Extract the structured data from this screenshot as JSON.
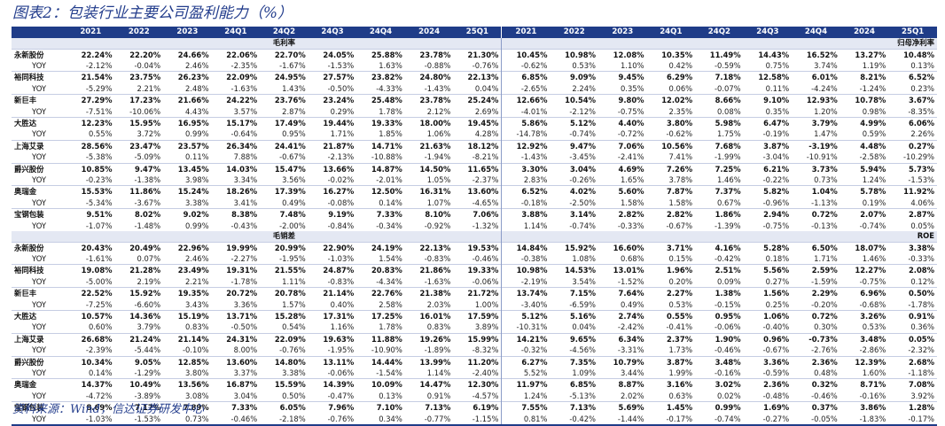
{
  "title": "图表2：包装行业主要公司盈利能力（%）",
  "source": "资料来源：Wind，信达证券研发中心",
  "periods": [
    "2021",
    "2022",
    "2023",
    "24Q1",
    "24Q2",
    "24Q3",
    "24Q4",
    "2024",
    "25Q1"
  ],
  "sections": [
    {
      "left_label": "毛利率",
      "right_label": "归母净利率",
      "companies": [
        {
          "name": "永新股份",
          "main": [
            "22.24%",
            "22.20%",
            "24.66%",
            "22.06%",
            "22.70%",
            "24.05%",
            "25.88%",
            "23.78%",
            "21.30%",
            "10.45%",
            "10.98%",
            "12.08%",
            "10.35%",
            "11.49%",
            "14.43%",
            "16.52%",
            "13.27%",
            "10.48%"
          ],
          "yoy": [
            "-2.12%",
            "-0.04%",
            "2.46%",
            "-2.35%",
            "-1.67%",
            "-1.53%",
            "1.63%",
            "-0.88%",
            "-0.76%",
            "-0.62%",
            "0.53%",
            "1.10%",
            "0.42%",
            "-0.59%",
            "0.75%",
            "3.74%",
            "1.19%",
            "0.13%"
          ]
        },
        {
          "name": "裕同科技",
          "main": [
            "21.54%",
            "23.75%",
            "26.23%",
            "22.09%",
            "24.95%",
            "27.57%",
            "23.82%",
            "24.80%",
            "22.13%",
            "6.85%",
            "9.09%",
            "9.45%",
            "6.29%",
            "7.18%",
            "12.58%",
            "6.01%",
            "8.21%",
            "6.52%"
          ],
          "yoy": [
            "-5.29%",
            "2.21%",
            "2.48%",
            "-1.63%",
            "1.43%",
            "-0.50%",
            "-4.33%",
            "-1.43%",
            "0.04%",
            "-2.65%",
            "2.24%",
            "0.35%",
            "0.06%",
            "-0.07%",
            "0.11%",
            "-4.24%",
            "-1.24%",
            "0.23%"
          ]
        },
        {
          "name": "新巨丰",
          "main": [
            "27.29%",
            "17.23%",
            "21.66%",
            "24.22%",
            "23.76%",
            "23.24%",
            "25.48%",
            "23.78%",
            "25.24%",
            "12.66%",
            "10.54%",
            "9.80%",
            "12.02%",
            "8.66%",
            "9.10%",
            "12.93%",
            "10.78%",
            "3.67%"
          ],
          "yoy": [
            "-7.51%",
            "-10.06%",
            "4.43%",
            "3.57%",
            "2.87%",
            "0.29%",
            "1.78%",
            "2.12%",
            "2.69%",
            "-4.01%",
            "-2.12%",
            "-0.75%",
            "2.35%",
            "0.08%",
            "0.35%",
            "1.20%",
            "0.98%",
            "-8.35%"
          ]
        },
        {
          "name": "大胜达",
          "main": [
            "12.23%",
            "15.95%",
            "16.95%",
            "15.17%",
            "17.49%",
            "19.44%",
            "19.33%",
            "18.00%",
            "19.45%",
            "5.86%",
            "5.12%",
            "4.40%",
            "3.80%",
            "5.98%",
            "6.47%",
            "3.79%",
            "4.99%",
            "6.06%"
          ],
          "yoy": [
            "0.55%",
            "3.72%",
            "0.99%",
            "-0.64%",
            "0.95%",
            "1.71%",
            "1.85%",
            "1.06%",
            "4.28%",
            "-14.78%",
            "-0.74%",
            "-0.72%",
            "-0.62%",
            "1.75%",
            "-0.19%",
            "1.47%",
            "0.59%",
            "2.26%"
          ]
        },
        {
          "name": "上海艾录",
          "main": [
            "28.56%",
            "23.47%",
            "23.57%",
            "26.34%",
            "24.41%",
            "21.87%",
            "14.71%",
            "21.63%",
            "18.12%",
            "12.92%",
            "9.47%",
            "7.06%",
            "10.56%",
            "7.68%",
            "3.87%",
            "-3.19%",
            "4.48%",
            "0.27%"
          ],
          "yoy": [
            "-5.38%",
            "-5.09%",
            "0.11%",
            "7.88%",
            "-0.67%",
            "-2.13%",
            "-10.88%",
            "-1.94%",
            "-8.21%",
            "-1.43%",
            "-3.45%",
            "-2.41%",
            "7.41%",
            "-1.99%",
            "-3.04%",
            "-10.91%",
            "-2.58%",
            "-10.29%"
          ]
        },
        {
          "name": "爵兴股份",
          "main": [
            "10.85%",
            "9.47%",
            "13.45%",
            "14.03%",
            "15.47%",
            "13.66%",
            "14.87%",
            "14.50%",
            "11.65%",
            "3.30%",
            "3.04%",
            "4.69%",
            "7.26%",
            "7.25%",
            "6.21%",
            "3.73%",
            "5.94%",
            "5.73%"
          ],
          "yoy": [
            "-0.23%",
            "-1.38%",
            "3.98%",
            "3.34%",
            "3.56%",
            "-0.02%",
            "-2.01%",
            "1.05%",
            "-2.37%",
            "2.83%",
            "-0.26%",
            "1.65%",
            "3.78%",
            "1.46%",
            "-0.22%",
            "0.73%",
            "1.24%",
            "-1.53%"
          ]
        },
        {
          "name": "奥瑞金",
          "main": [
            "15.53%",
            "11.86%",
            "15.24%",
            "18.26%",
            "17.39%",
            "16.27%",
            "12.50%",
            "16.31%",
            "13.60%",
            "6.52%",
            "4.02%",
            "5.60%",
            "7.87%",
            "7.37%",
            "5.82%",
            "1.04%",
            "5.78%",
            "11.92%"
          ],
          "yoy": [
            "-5.34%",
            "-3.67%",
            "3.38%",
            "3.41%",
            "0.49%",
            "-0.08%",
            "0.14%",
            "1.07%",
            "-4.65%",
            "-0.18%",
            "-2.50%",
            "1.58%",
            "1.58%",
            "0.67%",
            "-0.96%",
            "-1.13%",
            "0.19%",
            "4.06%"
          ]
        },
        {
          "name": "宝钢包装",
          "main": [
            "9.51%",
            "8.02%",
            "9.02%",
            "8.38%",
            "7.48%",
            "9.19%",
            "7.33%",
            "8.10%",
            "7.06%",
            "3.88%",
            "3.14%",
            "2.82%",
            "2.82%",
            "1.86%",
            "2.94%",
            "0.72%",
            "2.07%",
            "2.87%"
          ],
          "yoy": [
            "-1.07%",
            "-1.48%",
            "0.99%",
            "-0.43%",
            "-2.00%",
            "-0.84%",
            "-0.34%",
            "-0.92%",
            "-1.32%",
            "1.14%",
            "-0.74%",
            "-0.33%",
            "-0.67%",
            "-1.39%",
            "-0.75%",
            "-0.13%",
            "-0.74%",
            "0.05%"
          ]
        }
      ]
    },
    {
      "left_label": "毛销差",
      "right_label": "ROE",
      "companies": [
        {
          "name": "永新股份",
          "main": [
            "20.43%",
            "20.49%",
            "22.96%",
            "19.99%",
            "20.99%",
            "22.90%",
            "24.19%",
            "22.13%",
            "19.53%",
            "14.84%",
            "15.92%",
            "16.60%",
            "3.71%",
            "4.16%",
            "5.28%",
            "6.50%",
            "18.07%",
            "3.38%"
          ],
          "yoy": [
            "-1.61%",
            "0.07%",
            "2.46%",
            "-2.27%",
            "-1.95%",
            "-1.03%",
            "1.54%",
            "-0.83%",
            "-0.46%",
            "-0.38%",
            "1.08%",
            "0.68%",
            "0.15%",
            "-0.42%",
            "0.18%",
            "1.71%",
            "1.46%",
            "-0.33%"
          ]
        },
        {
          "name": "裕同科技",
          "main": [
            "19.08%",
            "21.28%",
            "23.49%",
            "19.31%",
            "21.55%",
            "24.87%",
            "20.83%",
            "21.86%",
            "19.33%",
            "10.98%",
            "14.53%",
            "13.01%",
            "1.96%",
            "2.51%",
            "5.56%",
            "2.59%",
            "12.27%",
            "2.08%"
          ],
          "yoy": [
            "-5.00%",
            "2.19%",
            "2.21%",
            "-1.78%",
            "1.11%",
            "-0.83%",
            "-4.34%",
            "-1.63%",
            "-0.06%",
            "-2.19%",
            "3.54%",
            "-1.52%",
            "0.20%",
            "0.09%",
            "0.27%",
            "-1.59%",
            "-0.75%",
            "0.12%"
          ]
        },
        {
          "name": "新巨丰",
          "main": [
            "22.52%",
            "15.92%",
            "19.35%",
            "20.72%",
            "20.78%",
            "21.14%",
            "22.76%",
            "21.38%",
            "21.72%",
            "13.74%",
            "7.15%",
            "7.64%",
            "2.27%",
            "1.38%",
            "1.56%",
            "2.29%",
            "6.96%",
            "0.50%"
          ],
          "yoy": [
            "-7.25%",
            "-6.60%",
            "3.43%",
            "3.36%",
            "1.57%",
            "0.40%",
            "2.58%",
            "2.03%",
            "1.00%",
            "-3.40%",
            "-6.59%",
            "0.49%",
            "0.53%",
            "-0.15%",
            "0.25%",
            "-0.20%",
            "-0.68%",
            "-1.78%"
          ]
        },
        {
          "name": "大胜达",
          "main": [
            "10.57%",
            "14.36%",
            "15.19%",
            "13.71%",
            "15.28%",
            "17.31%",
            "17.25%",
            "16.01%",
            "17.59%",
            "5.12%",
            "5.16%",
            "2.74%",
            "0.55%",
            "0.95%",
            "1.06%",
            "0.72%",
            "3.26%",
            "0.91%"
          ],
          "yoy": [
            "0.60%",
            "3.79%",
            "0.83%",
            "-0.50%",
            "0.54%",
            "1.16%",
            "1.78%",
            "0.83%",
            "3.89%",
            "-10.31%",
            "0.04%",
            "-2.42%",
            "-0.41%",
            "-0.06%",
            "-0.40%",
            "0.30%",
            "0.53%",
            "0.36%"
          ]
        },
        {
          "name": "上海艾录",
          "main": [
            "26.68%",
            "21.24%",
            "21.14%",
            "24.31%",
            "22.09%",
            "19.63%",
            "11.88%",
            "19.26%",
            "15.99%",
            "14.21%",
            "9.65%",
            "6.34%",
            "2.37%",
            "1.90%",
            "0.96%",
            "-0.73%",
            "3.48%",
            "0.05%"
          ],
          "yoy": [
            "-2.39%",
            "-5.44%",
            "-0.10%",
            "8.00%",
            "-0.76%",
            "-1.95%",
            "-10.90%",
            "-1.89%",
            "-8.32%",
            "-0.32%",
            "-4.56%",
            "-3.31%",
            "1.73%",
            "-0.46%",
            "-0.67%",
            "-2.76%",
            "-2.86%",
            "-2.32%"
          ]
        },
        {
          "name": "爵兴股份",
          "main": [
            "10.34%",
            "9.05%",
            "12.85%",
            "13.60%",
            "14.80%",
            "13.11%",
            "14.44%",
            "13.99%",
            "11.20%",
            "6.27%",
            "7.35%",
            "10.79%",
            "3.87%",
            "3.48%",
            "3.36%",
            "2.36%",
            "12.39%",
            "2.68%"
          ],
          "yoy": [
            "0.14%",
            "-1.29%",
            "3.80%",
            "3.37%",
            "3.38%",
            "-0.06%",
            "-1.54%",
            "1.14%",
            "-2.40%",
            "5.52%",
            "1.09%",
            "3.44%",
            "1.99%",
            "-0.16%",
            "-0.59%",
            "0.48%",
            "1.60%",
            "-1.18%"
          ]
        },
        {
          "name": "奥瑞金",
          "main": [
            "14.37%",
            "10.49%",
            "13.56%",
            "16.87%",
            "15.59%",
            "14.39%",
            "10.09%",
            "14.47%",
            "12.30%",
            "11.97%",
            "6.85%",
            "8.87%",
            "3.16%",
            "3.02%",
            "2.36%",
            "0.32%",
            "8.71%",
            "7.08%"
          ],
          "yoy": [
            "-4.72%",
            "-3.89%",
            "3.08%",
            "3.04%",
            "0.50%",
            "-0.47%",
            "0.13%",
            "0.91%",
            "-4.57%",
            "1.24%",
            "-5.13%",
            "2.02%",
            "0.63%",
            "0.02%",
            "-0.48%",
            "-0.46%",
            "-0.16%",
            "3.92%"
          ]
        },
        {
          "name": "宝钢包装",
          "main": [
            "8.69%",
            "7.17%",
            "7.89%",
            "7.33%",
            "6.05%",
            "7.96%",
            "7.10%",
            "7.13%",
            "6.19%",
            "7.55%",
            "7.13%",
            "5.69%",
            "1.45%",
            "0.99%",
            "1.69%",
            "0.37%",
            "3.86%",
            "1.28%"
          ],
          "yoy": [
            "-1.03%",
            "-1.53%",
            "0.73%",
            "-0.46%",
            "-2.18%",
            "-0.76%",
            "0.34%",
            "-0.77%",
            "-1.15%",
            "0.81%",
            "-0.42%",
            "-1.44%",
            "-0.17%",
            "-0.74%",
            "-0.27%",
            "-0.05%",
            "-1.83%",
            "-0.17%"
          ]
        }
      ]
    }
  ],
  "yoy_label": "YOY"
}
